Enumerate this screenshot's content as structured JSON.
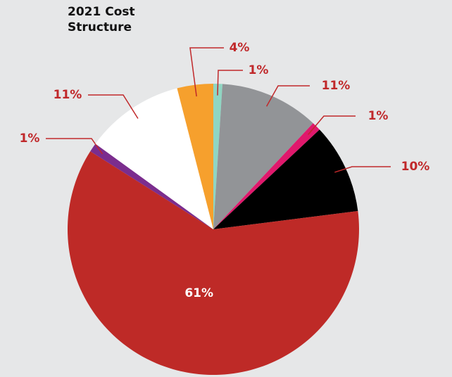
{
  "chart_data": {
    "type": "pie",
    "title": "2021 Cost Structure",
    "values": [
      1,
      11,
      1,
      10,
      61,
      1,
      11,
      4
    ],
    "value_labels": [
      "1%",
      "11%",
      "1%",
      "10%",
      "61%",
      "1%",
      "11%",
      "4%"
    ],
    "colors": [
      "#8fd6c3",
      "#929497",
      "#e0186c",
      "#000000",
      "#be2a27",
      "#7b2d8e",
      "#ffffff",
      "#f6a02d"
    ]
  }
}
